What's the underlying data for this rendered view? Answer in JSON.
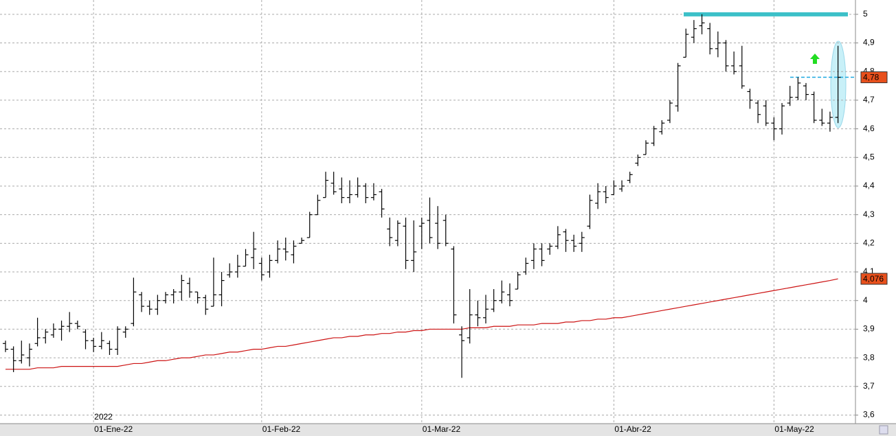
{
  "chart_data": {
    "type": "ohlc",
    "categories": [
      null,
      null,
      null,
      null,
      null,
      null,
      null,
      null,
      null,
      null,
      null,
      "01-Ene-22",
      null,
      null,
      null,
      null,
      null,
      null,
      null,
      null,
      null,
      null,
      null,
      null,
      null,
      null,
      null,
      null,
      null,
      null,
      null,
      null,
      "01-Feb-22",
      null,
      null,
      null,
      null,
      null,
      null,
      null,
      null,
      null,
      null,
      null,
      null,
      null,
      null,
      null,
      null,
      null,
      null,
      null,
      "01-Mar-22",
      null,
      null,
      null,
      null,
      null,
      null,
      null,
      null,
      null,
      null,
      null,
      null,
      null,
      null,
      null,
      null,
      null,
      null,
      null,
      null,
      null,
      null,
      null,
      "01-Abr-22",
      null,
      null,
      null,
      null,
      null,
      null,
      null,
      null,
      null,
      null,
      null,
      null,
      null,
      null,
      null,
      null,
      null,
      null,
      null,
      "01-May-22",
      null,
      null,
      null,
      null,
      null,
      null,
      null,
      null
    ],
    "year_label": "2022",
    "open": [
      3.85,
      3.83,
      3.79,
      3.8,
      3.85,
      3.87,
      3.88,
      3.9,
      3.91,
      3.92,
      3.89,
      3.86,
      3.84,
      3.85,
      3.83,
      3.89,
      3.92,
      4.02,
      3.98,
      3.97,
      4.0,
      4.02,
      4.03,
      4.06,
      4.03,
      4.01,
      3.98,
      4.02,
      4.09,
      4.1,
      4.12,
      4.15,
      4.13,
      4.1,
      4.14,
      4.18,
      4.16,
      4.2,
      4.22,
      4.3,
      4.36,
      4.41,
      4.39,
      4.36,
      4.37,
      4.4,
      4.36,
      4.38,
      4.25,
      4.21,
      4.26,
      4.14,
      4.26,
      4.28,
      4.27,
      4.28,
      4.18,
      3.88,
      3.87,
      3.95,
      3.94,
      3.97,
      4.0,
      4.02,
      4.04,
      4.1,
      4.14,
      4.18,
      4.18,
      4.19,
      4.24,
      4.21,
      4.2,
      4.26,
      4.34,
      4.38,
      4.37,
      4.39,
      4.42,
      4.48,
      4.51,
      4.55,
      4.59,
      4.63,
      4.68,
      4.85,
      4.92,
      4.96,
      4.95,
      4.88,
      4.9,
      4.82,
      4.82,
      4.73,
      4.69,
      4.68,
      4.62,
      4.6,
      4.69,
      4.71,
      4.75,
      4.72,
      4.63,
      4.62,
      4.64
    ],
    "high": [
      3.86,
      3.84,
      3.86,
      3.85,
      3.94,
      3.9,
      3.92,
      3.93,
      3.96,
      3.93,
      3.9,
      3.87,
      3.89,
      3.86,
      3.91,
      3.91,
      4.08,
      4.03,
      4.0,
      4.02,
      4.03,
      4.04,
      4.09,
      4.08,
      4.03,
      4.02,
      4.15,
      4.1,
      4.13,
      4.16,
      4.18,
      4.24,
      4.15,
      4.16,
      4.21,
      4.22,
      4.21,
      4.22,
      4.31,
      4.37,
      4.45,
      4.45,
      4.43,
      4.42,
      4.43,
      4.41,
      4.41,
      4.39,
      4.29,
      4.28,
      4.29,
      4.28,
      4.29,
      4.36,
      4.33,
      4.3,
      4.19,
      3.91,
      4.04,
      4.0,
      4.02,
      4.04,
      4.07,
      4.06,
      4.1,
      4.15,
      4.2,
      4.2,
      4.2,
      4.26,
      4.25,
      4.23,
      4.24,
      4.37,
      4.41,
      4.4,
      4.42,
      4.42,
      4.45,
      4.51,
      4.56,
      4.61,
      4.63,
      4.7,
      4.83,
      4.95,
      4.98,
      5.0,
      4.97,
      4.94,
      4.91,
      4.87,
      4.89,
      4.74,
      4.7,
      4.7,
      4.64,
      4.69,
      4.75,
      4.78,
      4.76,
      4.73,
      4.67,
      4.66,
      4.89
    ],
    "low": [
      3.82,
      3.75,
      3.78,
      3.77,
      3.84,
      3.85,
      3.87,
      3.86,
      3.89,
      3.9,
      3.83,
      3.82,
      3.83,
      3.81,
      3.81,
      3.87,
      3.91,
      3.96,
      3.95,
      3.95,
      3.99,
      3.99,
      4.0,
      4.01,
      3.99,
      3.95,
      3.98,
      3.98,
      4.08,
      4.08,
      4.12,
      4.11,
      4.07,
      4.08,
      4.13,
      4.14,
      4.13,
      4.2,
      4.22,
      4.3,
      4.36,
      4.37,
      4.34,
      4.34,
      4.36,
      4.34,
      4.35,
      4.29,
      4.19,
      4.19,
      4.11,
      4.1,
      4.18,
      4.2,
      4.18,
      4.19,
      3.92,
      3.73,
      3.85,
      3.91,
      3.92,
      3.96,
      3.99,
      3.98,
      4.04,
      4.09,
      4.11,
      4.12,
      4.16,
      4.18,
      4.17,
      4.17,
      4.17,
      4.25,
      4.32,
      4.34,
      4.37,
      4.38,
      4.41,
      4.47,
      4.51,
      4.54,
      4.58,
      4.62,
      4.66,
      4.85,
      4.9,
      4.93,
      4.86,
      4.85,
      4.8,
      4.79,
      4.74,
      4.67,
      4.62,
      4.61,
      4.56,
      4.58,
      4.68,
      4.7,
      4.7,
      4.62,
      4.61,
      4.59,
      4.62
    ],
    "close": [
      3.83,
      3.79,
      3.81,
      3.83,
      3.87,
      3.89,
      3.9,
      3.91,
      3.92,
      3.91,
      3.86,
      3.84,
      3.86,
      3.83,
      3.9,
      3.9,
      4.03,
      3.98,
      3.97,
      4.0,
      4.02,
      4.03,
      4.07,
      4.03,
      4.01,
      3.97,
      4.02,
      4.07,
      4.1,
      4.12,
      4.16,
      4.18,
      4.09,
      4.14,
      4.18,
      4.17,
      4.19,
      4.21,
      4.3,
      4.35,
      4.42,
      4.38,
      4.36,
      4.37,
      4.4,
      4.36,
      4.37,
      4.32,
      4.22,
      4.27,
      4.14,
      4.17,
      4.27,
      4.22,
      4.2,
      4.2,
      3.95,
      3.86,
      3.95,
      3.94,
      3.97,
      4.0,
      4.03,
      4.0,
      4.09,
      4.13,
      4.18,
      4.14,
      4.19,
      4.23,
      4.21,
      4.19,
      4.22,
      4.35,
      4.38,
      4.36,
      4.4,
      4.4,
      4.44,
      4.5,
      4.55,
      4.6,
      4.62,
      4.69,
      4.82,
      4.93,
      4.95,
      4.97,
      4.88,
      4.9,
      4.82,
      4.8,
      4.75,
      4.7,
      4.65,
      4.62,
      4.6,
      4.68,
      4.71,
      4.76,
      4.72,
      4.63,
      4.62,
      4.64,
      4.78
    ],
    "moving_average": {
      "color": "#cc1111",
      "values": [
        3.76,
        3.76,
        3.76,
        3.76,
        3.765,
        3.765,
        3.765,
        3.77,
        3.77,
        3.77,
        3.77,
        3.77,
        3.77,
        3.77,
        3.77,
        3.775,
        3.78,
        3.78,
        3.785,
        3.79,
        3.79,
        3.795,
        3.8,
        3.8,
        3.805,
        3.81,
        3.81,
        3.815,
        3.82,
        3.82,
        3.825,
        3.83,
        3.83,
        3.835,
        3.84,
        3.84,
        3.845,
        3.85,
        3.855,
        3.86,
        3.865,
        3.87,
        3.87,
        3.875,
        3.875,
        3.88,
        3.88,
        3.885,
        3.885,
        3.89,
        3.89,
        3.895,
        3.895,
        3.9,
        3.9,
        3.9,
        3.9,
        3.9,
        3.905,
        3.905,
        3.905,
        3.91,
        3.91,
        3.91,
        3.915,
        3.915,
        3.915,
        3.92,
        3.92,
        3.92,
        3.925,
        3.925,
        3.93,
        3.93,
        3.935,
        3.935,
        3.94,
        3.94,
        3.945,
        3.95,
        3.955,
        3.96,
        3.965,
        3.97,
        3.975,
        3.98,
        3.985,
        3.99,
        3.995,
        4.0,
        4.005,
        4.01,
        4.015,
        4.02,
        4.025,
        4.03,
        4.035,
        4.04,
        4.045,
        4.05,
        4.055,
        4.06,
        4.065,
        4.07,
        4.076
      ]
    },
    "resistance": 5,
    "price_labels": [
      {
        "value": 4.78,
        "label": "4,78"
      },
      {
        "value": 4.076,
        "label": "4,076"
      }
    ],
    "ylim": [
      3.57,
      5.05
    ],
    "yticks": [
      5,
      {
        "value": 4.9,
        "label": "4,9"
      },
      {
        "value": 4.8,
        "label": "4,8"
      },
      {
        "value": 4.7,
        "label": "4,7"
      },
      {
        "value": 4.6,
        "label": "4,6"
      },
      {
        "value": 4.5,
        "label": "4,5"
      },
      {
        "value": 4.4,
        "label": "4,4"
      },
      {
        "value": 4.3,
        "label": "4,3"
      },
      {
        "value": 4.2,
        "label": "4,2"
      },
      {
        "value": 4.1,
        "label": "4,1"
      },
      4,
      {
        "value": 3.9,
        "label": "3,9"
      },
      {
        "value": 3.8,
        "label": "3,8"
      },
      {
        "value": 3.7,
        "label": "3,7"
      },
      {
        "value": 3.6,
        "label": "3,6"
      }
    ],
    "grid": true
  }
}
